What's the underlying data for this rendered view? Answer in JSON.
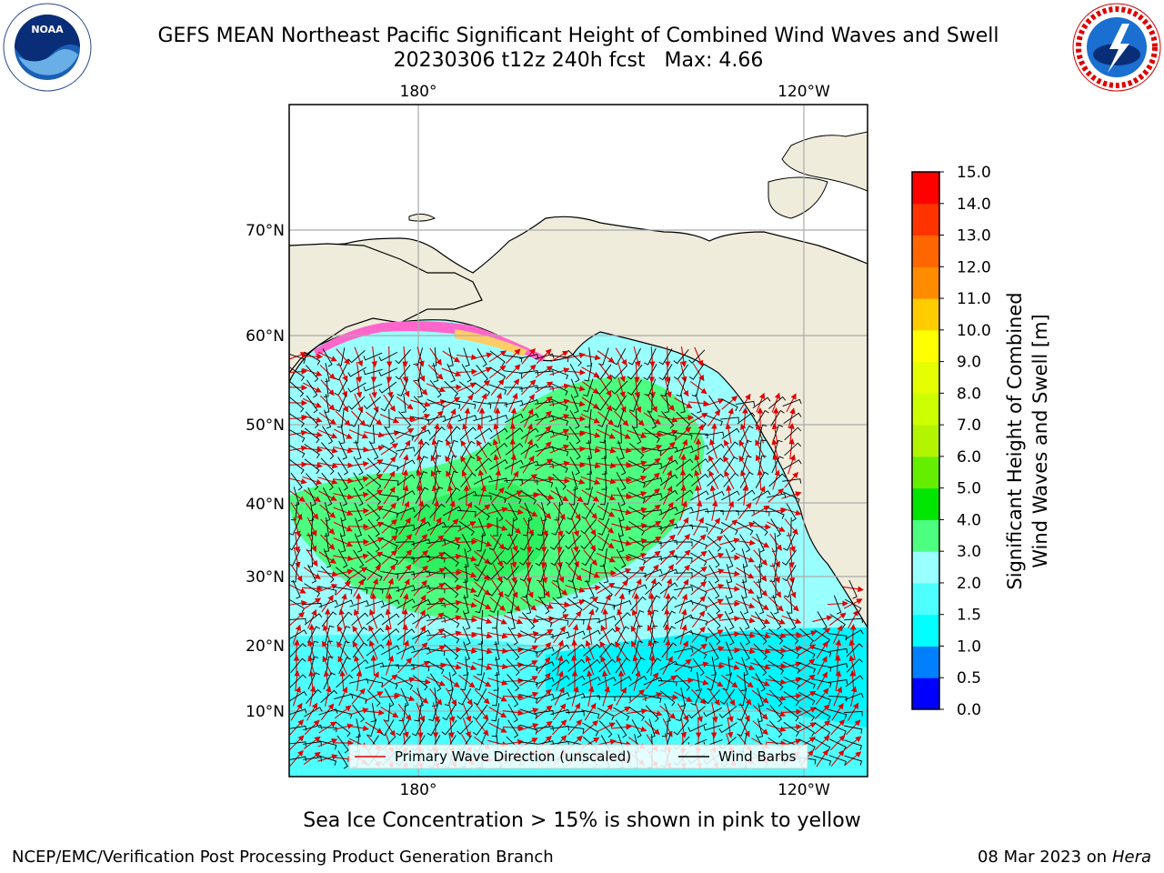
{
  "header": {
    "title_line1": "GEFS MEAN Northeast Pacific Significant Height of Combined Wind Waves and Swell",
    "title_line2": "20230306 t12z 240h fcst   Max: 4.66"
  },
  "logos": {
    "left": "NOAA",
    "right": "NATIONAL WEATHER SERVICE"
  },
  "map": {
    "lon_labels_top": [
      "180°",
      "120°W"
    ],
    "lon_labels_bottom": [
      "180°",
      "120°W"
    ],
    "lat_labels": [
      "70°N",
      "60°N",
      "50°N",
      "40°N",
      "30°N",
      "20°N",
      "10°N"
    ],
    "colors": {
      "land": "#efecdc",
      "ocean_low": "#99ffff",
      "ocean_mid": "#4dffff",
      "wave_green": "#4dff80",
      "wave_green_dark": "#00e600",
      "ice": "#ff66cc",
      "arrow": "#e00000",
      "barb": "#000000"
    }
  },
  "legend": {
    "wave_direction": "Primary Wave Direction (unscaled)",
    "wind_barbs": "Wind Barbs"
  },
  "colorbar": {
    "label_line1": "Significant Height of Combined",
    "label_line2": "Wind Waves and Swell [m]",
    "ticks": [
      "0.0",
      "0.5",
      "1.0",
      "1.5",
      "2.0",
      "3.0",
      "4.0",
      "5.0",
      "6.0",
      "7.0",
      "8.0",
      "9.0",
      "10.0",
      "11.0",
      "12.0",
      "13.0",
      "14.0",
      "15.0"
    ],
    "colors": [
      "#0000ff",
      "#0080ff",
      "#00ffff",
      "#4dffff",
      "#99ffff",
      "#4dff80",
      "#00e600",
      "#66ee00",
      "#b3f500",
      "#ccff00",
      "#e6ff00",
      "#ffff00",
      "#ffcc00",
      "#ff8c00",
      "#ff6600",
      "#ff3300",
      "#ff0000"
    ]
  },
  "caption": "Sea Ice Concentration > 15% is shown in pink to yellow",
  "footer": {
    "left": "NCEP/EMC/Verification Post Processing Product Generation Branch",
    "right_date": "08 Mar 2023 on",
    "right_host": "Hera"
  }
}
